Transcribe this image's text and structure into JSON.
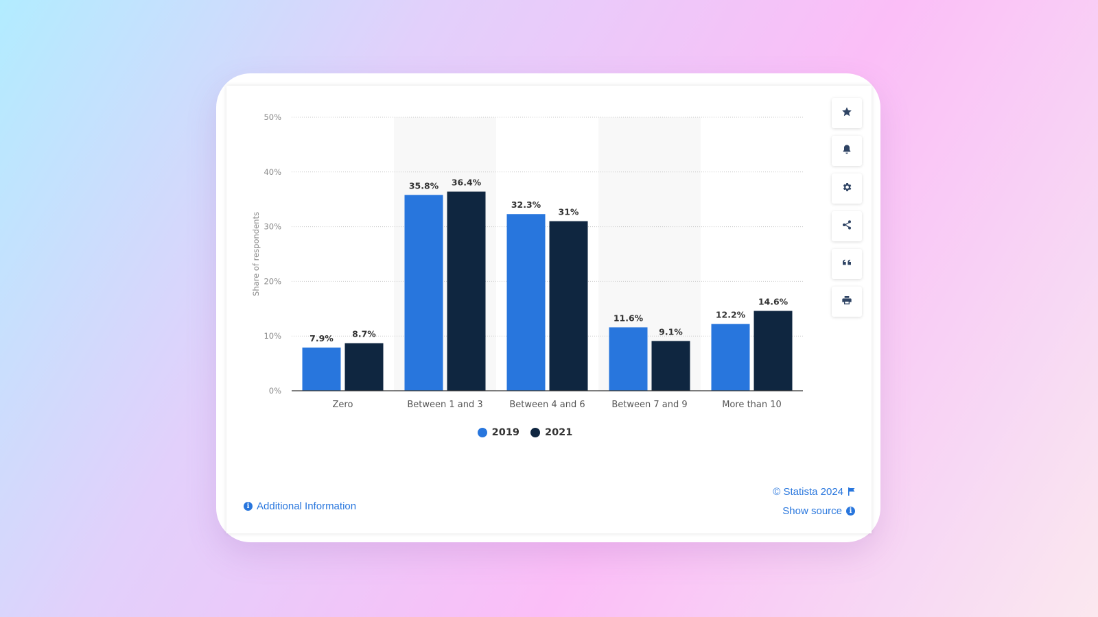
{
  "colors": {
    "series_2019": "#2876dd",
    "series_2021": "#0f2640",
    "link": "#2876dd"
  },
  "toolbar": {
    "buttons": [
      {
        "icon": "star-icon"
      },
      {
        "icon": "bell-icon"
      },
      {
        "icon": "gear-icon"
      },
      {
        "icon": "share-icon"
      },
      {
        "icon": "quote-icon"
      },
      {
        "icon": "print-icon"
      }
    ]
  },
  "chart_data": {
    "type": "bar",
    "ylabel": "Share of respondents",
    "ylim": [
      0,
      50
    ],
    "yticks": [
      "0%",
      "10%",
      "20%",
      "30%",
      "40%",
      "50%"
    ],
    "categories": [
      "Zero",
      "Between 1 and 3",
      "Between 4 and 6",
      "Between 7 and 9",
      "More than 10"
    ],
    "series": [
      {
        "name": "2019",
        "values": [
          7.9,
          35.8,
          32.3,
          11.6,
          12.2
        ],
        "labels": [
          "7.9%",
          "35.8%",
          "32.3%",
          "11.6%",
          "12.2%"
        ]
      },
      {
        "name": "2021",
        "values": [
          8.7,
          36.4,
          31,
          9.1,
          14.6
        ],
        "labels": [
          "8.7%",
          "36.4%",
          "31%",
          "9.1%",
          "14.6%"
        ]
      }
    ],
    "grid": true,
    "legend": "bottom-center"
  },
  "footer": {
    "additional_info": "Additional Information",
    "copyright": "© Statista 2024",
    "show_source": "Show source"
  }
}
